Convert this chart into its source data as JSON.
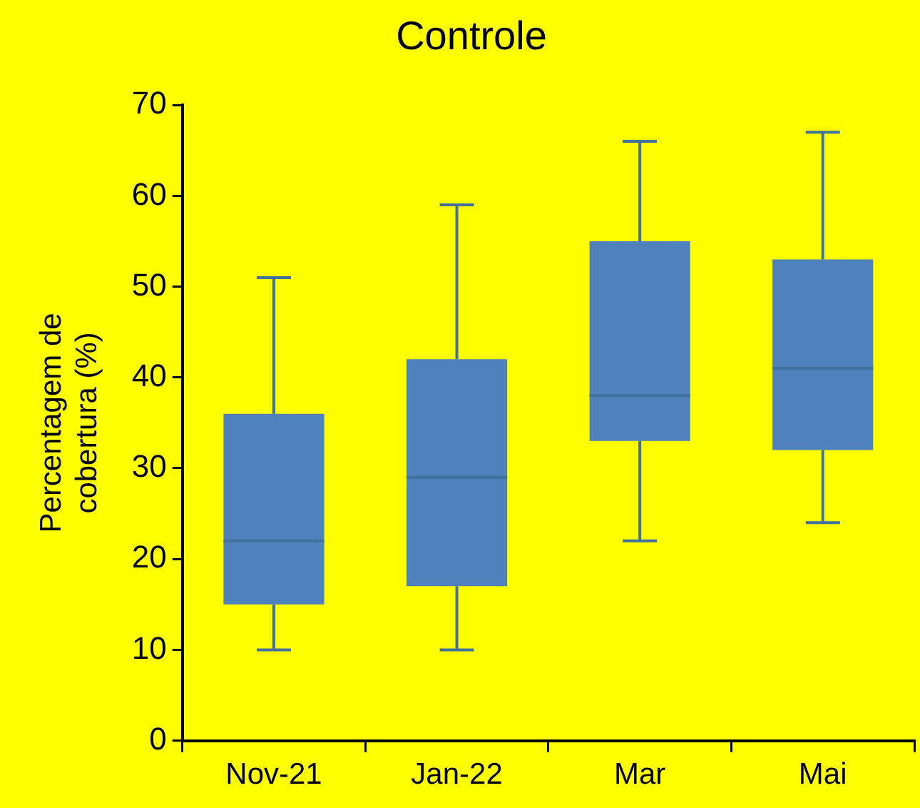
{
  "chart_data": {
    "type": "box",
    "title": "Controle",
    "ylabel": "Percentagem de cobertura (%)",
    "categories": [
      "Nov-21",
      "Jan-22",
      "Mar",
      "Mai"
    ],
    "boxes": [
      {
        "low": 10,
        "q1": 15,
        "median": 22,
        "q3": 36,
        "high": 51
      },
      {
        "low": 10,
        "q1": 17,
        "median": 29,
        "q3": 42,
        "high": 59
      },
      {
        "low": 22,
        "q1": 33,
        "median": 38,
        "q3": 55,
        "high": 66
      },
      {
        "low": 24,
        "q1": 32,
        "median": 41,
        "q3": 53,
        "high": 67
      }
    ],
    "color": "#4f81bd",
    "ylim": [
      0,
      70
    ],
    "yticks": [
      0,
      10,
      20,
      30,
      40,
      50,
      60,
      70
    ],
    "grid": false,
    "legend": false
  }
}
